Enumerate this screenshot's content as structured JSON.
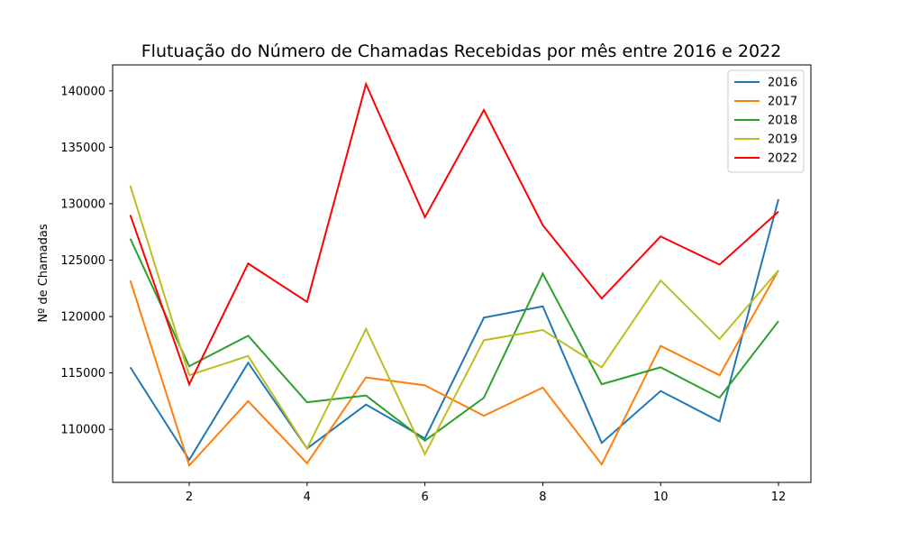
{
  "chart_data": {
    "type": "line",
    "title": "Flutuação do Número de Chamadas Recebidas por mês entre 2016 e 2022",
    "xlabel": "",
    "ylabel": "Nº de Chamadas",
    "x": [
      1,
      2,
      3,
      4,
      5,
      6,
      7,
      8,
      9,
      10,
      11,
      12
    ],
    "xlim": [
      0.7,
      12.55
    ],
    "ylim": [
      105300,
      142300
    ],
    "xticks": [
      2,
      4,
      6,
      8,
      10,
      12
    ],
    "yticks": [
      110000,
      115000,
      120000,
      125000,
      130000,
      135000,
      140000
    ],
    "grid": false,
    "legend_position": "top-right",
    "series": [
      {
        "name": "2016",
        "color": "#1f77b4",
        "values": [
          115500,
          107300,
          115900,
          108300,
          112200,
          109200,
          119900,
          120900,
          108800,
          113400,
          110700,
          130400
        ]
      },
      {
        "name": "2017",
        "color": "#ff7f0e",
        "values": [
          123200,
          106800,
          112500,
          107000,
          114600,
          113900,
          111200,
          113700,
          106900,
          117400,
          114800,
          124100
        ]
      },
      {
        "name": "2018",
        "color": "#2ca02c",
        "values": [
          126900,
          115600,
          118300,
          112400,
          113000,
          109000,
          112800,
          123800,
          114000,
          115500,
          112800,
          119600
        ]
      },
      {
        "name": "2019",
        "color": "#bcbd22",
        "values": [
          131600,
          114800,
          116500,
          108300,
          118900,
          107800,
          117900,
          118800,
          115500,
          123200,
          118000,
          124100
        ]
      },
      {
        "name": "2022",
        "color": "#ff0000",
        "values": [
          129000,
          114000,
          124700,
          121300,
          140600,
          128800,
          138300,
          128100,
          121600,
          127100,
          124600,
          129300
        ]
      }
    ]
  }
}
